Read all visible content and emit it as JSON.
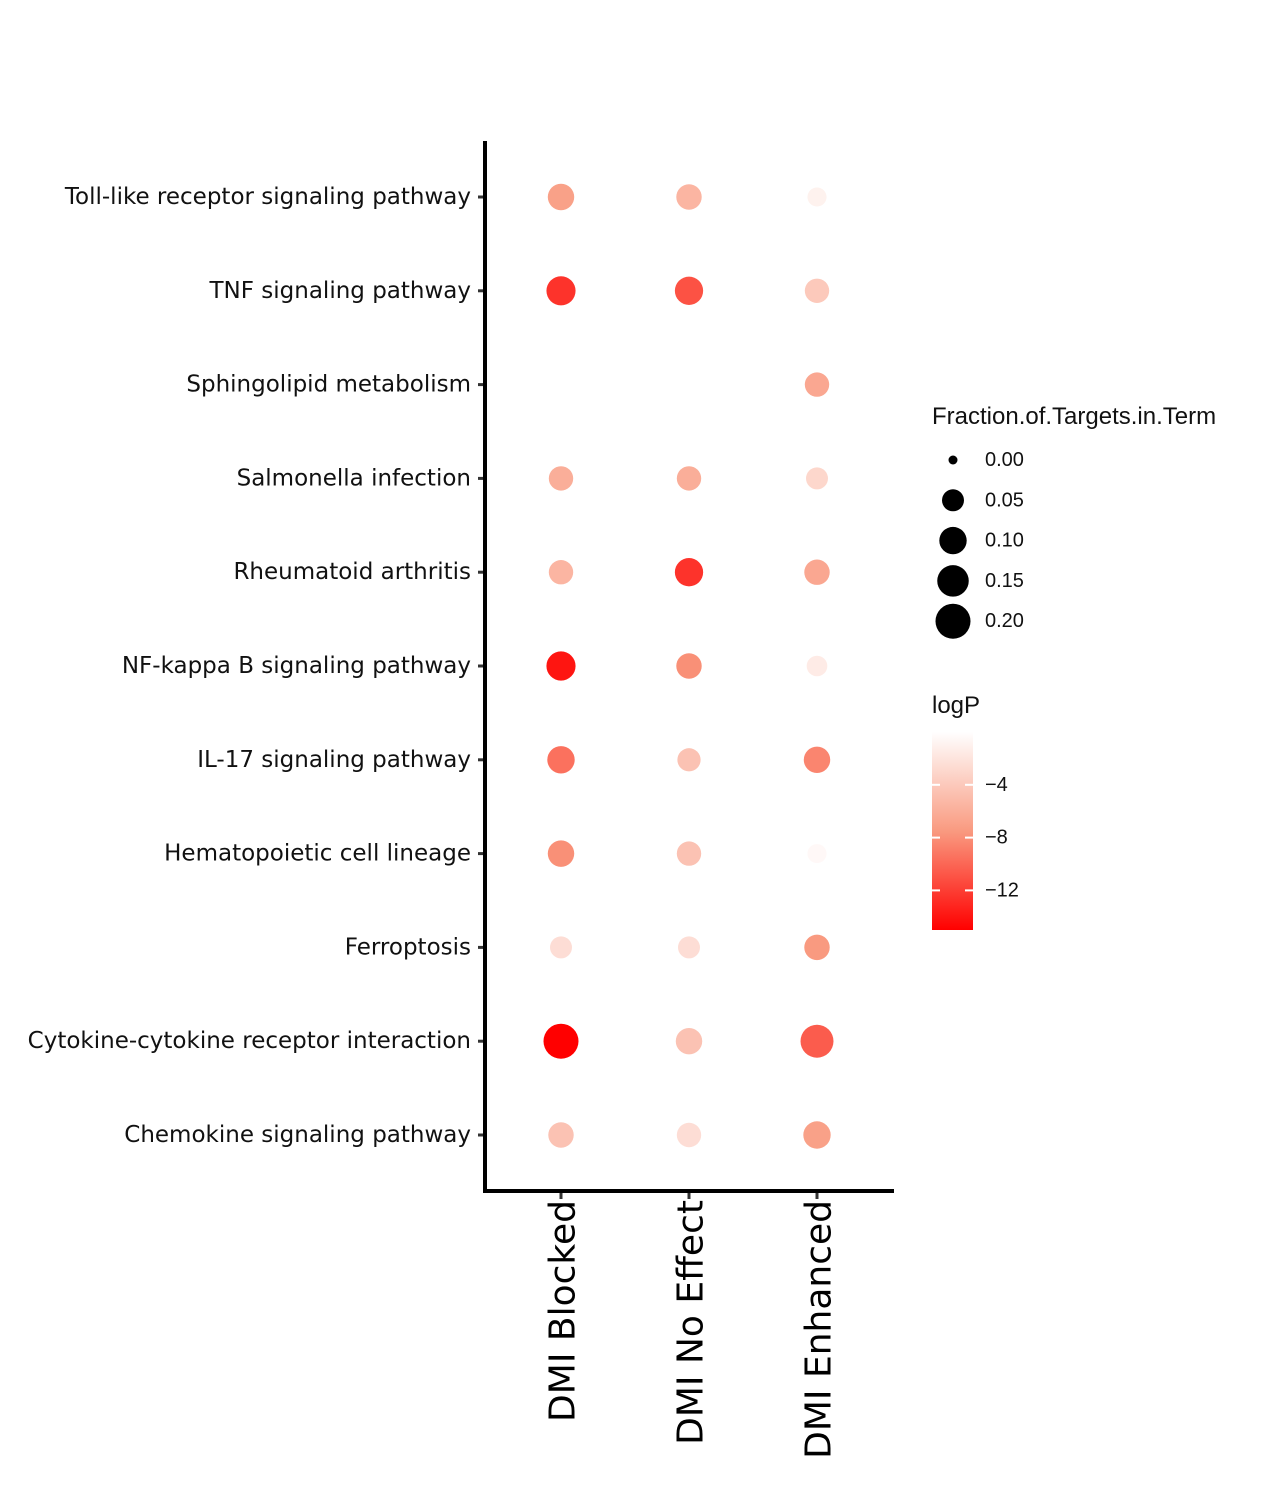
{
  "chart_data": {
    "type": "scatter",
    "subtype": "dot-plot",
    "x_categories": [
      "DMI Blocked",
      "DMI No Effect",
      "DMI Enhanced"
    ],
    "y_categories": [
      "Toll-like receptor signaling pathway",
      "TNF signaling pathway",
      "Sphingolipid metabolism",
      "Salmonella infection",
      "Rheumatoid arthritis",
      "NF-kappa B signaling pathway",
      "IL-17 signaling pathway",
      "Hematopoietic cell lineage",
      "Ferroptosis",
      "Cytokine-cytokine receptor interaction",
      "Chemokine signaling pathway"
    ],
    "points": [
      {
        "pathway": "Toll-like receptor signaling pathway",
        "group": "DMI Blocked",
        "fraction": 0.09,
        "logP": -7
      },
      {
        "pathway": "Toll-like receptor signaling pathway",
        "group": "DMI No Effect",
        "fraction": 0.08,
        "logP": -5.5
      },
      {
        "pathway": "Toll-like receptor signaling pathway",
        "group": "DMI Enhanced",
        "fraction": 0.03,
        "logP": -1
      },
      {
        "pathway": "TNF signaling pathway",
        "group": "DMI Blocked",
        "fraction": 0.12,
        "logP": -12.5
      },
      {
        "pathway": "TNF signaling pathway",
        "group": "DMI No Effect",
        "fraction": 0.11,
        "logP": -11
      },
      {
        "pathway": "TNF signaling pathway",
        "group": "DMI Enhanced",
        "fraction": 0.07,
        "logP": -4
      },
      {
        "pathway": "Sphingolipid metabolism",
        "group": "DMI Enhanced",
        "fraction": 0.07,
        "logP": -6.5
      },
      {
        "pathway": "Salmonella infection",
        "group": "DMI Blocked",
        "fraction": 0.07,
        "logP": -6
      },
      {
        "pathway": "Salmonella infection",
        "group": "DMI No Effect",
        "fraction": 0.07,
        "logP": -6
      },
      {
        "pathway": "Salmonella infection",
        "group": "DMI Enhanced",
        "fraction": 0.05,
        "logP": -3
      },
      {
        "pathway": "Rheumatoid arthritis",
        "group": "DMI Blocked",
        "fraction": 0.07,
        "logP": -5.5
      },
      {
        "pathway": "Rheumatoid arthritis",
        "group": "DMI No Effect",
        "fraction": 0.11,
        "logP": -12.5
      },
      {
        "pathway": "Rheumatoid arthritis",
        "group": "DMI Enhanced",
        "fraction": 0.08,
        "logP": -6.5
      },
      {
        "pathway": "NF-kappa B signaling pathway",
        "group": "DMI Blocked",
        "fraction": 0.12,
        "logP": -14
      },
      {
        "pathway": "NF-kappa B signaling pathway",
        "group": "DMI No Effect",
        "fraction": 0.08,
        "logP": -8
      },
      {
        "pathway": "NF-kappa B signaling pathway",
        "group": "DMI Enhanced",
        "fraction": 0.04,
        "logP": -1.5
      },
      {
        "pathway": "IL-17 signaling pathway",
        "group": "DMI Blocked",
        "fraction": 0.1,
        "logP": -9.5
      },
      {
        "pathway": "IL-17 signaling pathway",
        "group": "DMI No Effect",
        "fraction": 0.06,
        "logP": -4.5
      },
      {
        "pathway": "IL-17 signaling pathway",
        "group": "DMI Enhanced",
        "fraction": 0.09,
        "logP": -8.5
      },
      {
        "pathway": "Hematopoietic cell lineage",
        "group": "DMI Blocked",
        "fraction": 0.09,
        "logP": -8
      },
      {
        "pathway": "Hematopoietic cell lineage",
        "group": "DMI No Effect",
        "fraction": 0.07,
        "logP": -4.5
      },
      {
        "pathway": "Hematopoietic cell lineage",
        "group": "DMI Enhanced",
        "fraction": 0.03,
        "logP": -0.5
      },
      {
        "pathway": "Ferroptosis",
        "group": "DMI Blocked",
        "fraction": 0.05,
        "logP": -2.5
      },
      {
        "pathway": "Ferroptosis",
        "group": "DMI No Effect",
        "fraction": 0.05,
        "logP": -2.5
      },
      {
        "pathway": "Ferroptosis",
        "group": "DMI Enhanced",
        "fraction": 0.08,
        "logP": -7.5
      },
      {
        "pathway": "Cytokine-cytokine receptor interaction",
        "group": "DMI Blocked",
        "fraction": 0.2,
        "logP": -15
      },
      {
        "pathway": "Cytokine-cytokine receptor interaction",
        "group": "DMI No Effect",
        "fraction": 0.09,
        "logP": -4.5
      },
      {
        "pathway": "Cytokine-cytokine receptor interaction",
        "group": "DMI Enhanced",
        "fraction": 0.17,
        "logP": -10.5
      },
      {
        "pathway": "Chemokine signaling pathway",
        "group": "DMI Blocked",
        "fraction": 0.08,
        "logP": -4.5
      },
      {
        "pathway": "Chemokine signaling pathway",
        "group": "DMI No Effect",
        "fraction": 0.07,
        "logP": -2.5
      },
      {
        "pathway": "Chemokine signaling pathway",
        "group": "DMI Enhanced",
        "fraction": 0.1,
        "logP": -7
      }
    ],
    "size_legend": {
      "title": "Fraction.of.Targets.in.Term",
      "values": [
        0.0,
        0.05,
        0.1,
        0.15,
        0.2
      ],
      "labels": [
        "0.00",
        "0.05",
        "0.10",
        "0.15",
        "0.20"
      ]
    },
    "color_legend": {
      "title": "logP",
      "range": [
        -15,
        0
      ],
      "ticks": [
        -4,
        -8,
        -12
      ],
      "tick_labels": [
        "−4",
        "−8",
        "−12"
      ],
      "low_color": "#ff0000",
      "high_color": "#ffffff"
    },
    "grid": false,
    "legend_position": "right"
  }
}
